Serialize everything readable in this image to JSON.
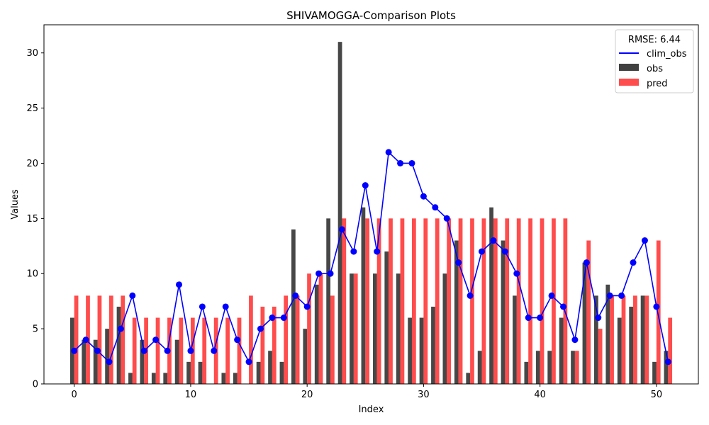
{
  "chart_data": {
    "type": "bar",
    "title": "SHIVAMOGGA-Comparison Plots",
    "xlabel": "Index",
    "ylabel": "Values",
    "xlim": [
      -2.6,
      53.6
    ],
    "ylim": [
      0,
      32.55
    ],
    "xticks": [
      0,
      10,
      20,
      30,
      40,
      50
    ],
    "yticks": [
      0,
      5,
      10,
      15,
      20,
      25,
      30
    ],
    "legend": {
      "title": "RMSE: 6.44",
      "position": "top-right",
      "entries": [
        "clim_obs",
        "obs",
        "pred"
      ]
    },
    "colors": {
      "clim_obs": "#0000ff",
      "obs": "#404040",
      "pred": "#ff4d4d"
    },
    "x": [
      0,
      1,
      2,
      3,
      4,
      5,
      6,
      7,
      8,
      9,
      10,
      11,
      12,
      13,
      14,
      15,
      16,
      17,
      18,
      19,
      20,
      21,
      22,
      23,
      24,
      25,
      26,
      27,
      28,
      29,
      30,
      31,
      32,
      33,
      34,
      35,
      36,
      37,
      38,
      39,
      40,
      41,
      42,
      43,
      44,
      45,
      46,
      47,
      48,
      49,
      50,
      51
    ],
    "series": [
      {
        "name": "obs",
        "kind": "bar",
        "values": [
          6,
          4,
          4,
          5,
          7,
          1,
          4,
          1,
          1,
          4,
          2,
          2,
          0,
          1,
          1,
          0,
          2,
          3,
          2,
          14,
          5,
          9,
          15,
          31,
          10,
          16,
          10,
          12,
          10,
          6,
          6,
          7,
          10,
          13,
          1,
          3,
          16,
          13,
          8,
          2,
          3,
          3,
          6,
          3,
          11,
          8,
          9,
          6,
          7,
          8,
          2,
          3
        ]
      },
      {
        "name": "pred",
        "kind": "bar",
        "values": [
          8,
          8,
          8,
          8,
          8,
          6,
          6,
          6,
          6,
          6,
          6,
          6,
          6,
          6,
          6,
          8,
          7,
          7,
          8,
          8,
          10,
          10,
          8,
          15,
          10,
          15,
          15,
          15,
          15,
          15,
          15,
          15,
          15,
          15,
          15,
          15,
          15,
          15,
          15,
          15,
          15,
          15,
          15,
          3,
          13,
          5,
          8,
          8,
          8,
          8,
          13,
          6
        ]
      },
      {
        "name": "clim_obs",
        "kind": "line",
        "values": [
          3,
          4,
          3,
          2,
          5,
          8,
          3,
          4,
          3,
          9,
          3,
          7,
          3,
          7,
          4,
          2,
          5,
          6,
          6,
          8,
          7,
          10,
          10,
          14,
          12,
          18,
          12,
          21,
          20,
          20,
          17,
          16,
          15,
          11,
          8,
          12,
          13,
          12,
          10,
          6,
          6,
          8,
          7,
          4,
          11,
          6,
          8,
          8,
          11,
          13,
          7,
          2
        ]
      }
    ]
  }
}
